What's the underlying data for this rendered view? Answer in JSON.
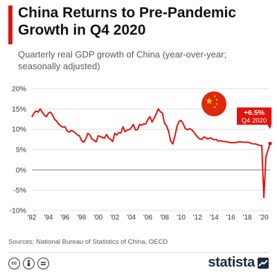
{
  "header": {
    "title": "China Returns to Pre-Pandemic Growth in Q4 2020",
    "subtitle": "Quarterly real GDP growth of China (year-over-year; seasonally adjusted)"
  },
  "footer": {
    "source": "Sources: National Bureau of Statistics of China, OECD",
    "brand": "statista",
    "license_icons": [
      "cc-icon",
      "person-icon",
      "equals-icon"
    ]
  },
  "colors": {
    "line": "#e3120b",
    "annotation_box": "#e3120b",
    "zero_line": "#8c8c8c",
    "grid": "#d9d9d9",
    "flag_red": "#de2910",
    "flag_yellow": "#ffde00"
  },
  "chart_data": {
    "type": "line",
    "title": "China Returns to Pre-Pandemic Growth in Q4 2020",
    "subtitle": "Quarterly real GDP growth of China (year-over-year; seasonally adjusted)",
    "xlabel": "",
    "ylabel": "",
    "xlim": [
      "1992-Q1",
      "2020-Q4"
    ],
    "ylim": [
      -10,
      20
    ],
    "y_ticks": [
      20,
      15,
      10,
      5,
      0,
      -5,
      -10
    ],
    "y_tick_labels": [
      "20%",
      "15%",
      "10%",
      "5%",
      "0%",
      "-5%",
      "-10%"
    ],
    "x_ticks": [
      1992,
      1994,
      1996,
      1998,
      2000,
      2002,
      2004,
      2006,
      2008,
      2010,
      2012,
      2014,
      2016,
      2018,
      2020
    ],
    "x_tick_labels": [
      "'92",
      "'94",
      "'96",
      "'98",
      "'00",
      "'02",
      "'04",
      "'06",
      "'08",
      "'10",
      "'12",
      "'14",
      "'16",
      "'18",
      "'20"
    ],
    "grid": "horizontal",
    "annotation": {
      "text_value": "+6.5%",
      "text_period": "Q4 2020",
      "x": "2020-Q4",
      "y": 6.5
    },
    "series": [
      {
        "values": [
          [
            "1992-Q1",
            13.0
          ],
          [
            "1992-Q2",
            14.0
          ],
          [
            "1992-Q3",
            14.5
          ],
          [
            "1992-Q4",
            14.2
          ],
          [
            "1993-Q1",
            15.0
          ],
          [
            "1993-Q2",
            14.2
          ],
          [
            "1993-Q3",
            13.5
          ],
          [
            "1993-Q4",
            13.1
          ],
          [
            "1994-Q1",
            14.0
          ],
          [
            "1994-Q2",
            14.2
          ],
          [
            "1994-Q3",
            13.5
          ],
          [
            "1994-Q4",
            12.4
          ],
          [
            "1995-Q1",
            12.0
          ],
          [
            "1995-Q2",
            11.2
          ],
          [
            "1995-Q3",
            10.8
          ],
          [
            "1995-Q4",
            10.5
          ],
          [
            "1996-Q1",
            10.6
          ],
          [
            "1996-Q2",
            9.6
          ],
          [
            "1996-Q3",
            9.3
          ],
          [
            "1996-Q4",
            9.7
          ],
          [
            "1997-Q1",
            9.5
          ],
          [
            "1997-Q2",
            9.1
          ],
          [
            "1997-Q3",
            8.6
          ],
          [
            "1997-Q4",
            8.4
          ],
          [
            "1998-Q1",
            7.2
          ],
          [
            "1998-Q2",
            6.8
          ],
          [
            "1998-Q3",
            7.6
          ],
          [
            "1998-Q4",
            9.0
          ],
          [
            "1999-Q1",
            8.6
          ],
          [
            "1999-Q2",
            7.6
          ],
          [
            "1999-Q3",
            7.3
          ],
          [
            "1999-Q4",
            6.9
          ],
          [
            "2000-Q1",
            8.4
          ],
          [
            "2000-Q2",
            8.2
          ],
          [
            "2000-Q3",
            8.0
          ],
          [
            "2000-Q4",
            7.8
          ],
          [
            "2001-Q1",
            8.7
          ],
          [
            "2001-Q2",
            7.9
          ],
          [
            "2001-Q3",
            7.5
          ],
          [
            "2001-Q4",
            7.0
          ],
          [
            "2002-Q1",
            9.0
          ],
          [
            "2002-Q2",
            8.6
          ],
          [
            "2002-Q3",
            9.2
          ],
          [
            "2002-Q4",
            9.1
          ],
          [
            "2003-Q1",
            10.6
          ],
          [
            "2003-Q2",
            9.4
          ],
          [
            "2003-Q3",
            9.8
          ],
          [
            "2003-Q4",
            9.9
          ],
          [
            "2004-Q1",
            10.4
          ],
          [
            "2004-Q2",
            11.2
          ],
          [
            "2004-Q3",
            9.8
          ],
          [
            "2004-Q4",
            9.9
          ],
          [
            "2005-Q1",
            11.2
          ],
          [
            "2005-Q2",
            11.0
          ],
          [
            "2005-Q3",
            11.3
          ],
          [
            "2005-Q4",
            11.3
          ],
          [
            "2006-Q1",
            12.4
          ],
          [
            "2006-Q2",
            13.1
          ],
          [
            "2006-Q3",
            11.8
          ],
          [
            "2006-Q4",
            12.7
          ],
          [
            "2007-Q1",
            13.8
          ],
          [
            "2007-Q2",
            15.0
          ],
          [
            "2007-Q3",
            14.3
          ],
          [
            "2007-Q4",
            14.0
          ],
          [
            "2008-Q1",
            11.5
          ],
          [
            "2008-Q2",
            10.9
          ],
          [
            "2008-Q3",
            9.5
          ],
          [
            "2008-Q4",
            7.1
          ],
          [
            "2009-Q1",
            6.4
          ],
          [
            "2009-Q2",
            8.2
          ],
          [
            "2009-Q3",
            10.6
          ],
          [
            "2009-Q4",
            11.9
          ],
          [
            "2010-Q1",
            12.2
          ],
          [
            "2010-Q2",
            11.4
          ],
          [
            "2010-Q3",
            10.2
          ],
          [
            "2010-Q4",
            9.9
          ],
          [
            "2011-Q1",
            10.1
          ],
          [
            "2011-Q2",
            10.0
          ],
          [
            "2011-Q3",
            9.4
          ],
          [
            "2011-Q4",
            8.7
          ],
          [
            "2012-Q1",
            8.1
          ],
          [
            "2012-Q2",
            7.6
          ],
          [
            "2012-Q3",
            7.5
          ],
          [
            "2012-Q4",
            8.1
          ],
          [
            "2013-Q1",
            7.9
          ],
          [
            "2013-Q2",
            7.6
          ],
          [
            "2013-Q3",
            7.9
          ],
          [
            "2013-Q4",
            7.7
          ],
          [
            "2014-Q1",
            7.4
          ],
          [
            "2014-Q2",
            7.5
          ],
          [
            "2014-Q3",
            7.1
          ],
          [
            "2014-Q4",
            7.2
          ],
          [
            "2015-Q1",
            7.0
          ],
          [
            "2015-Q2",
            7.0
          ],
          [
            "2015-Q3",
            6.9
          ],
          [
            "2015-Q4",
            6.8
          ],
          [
            "2016-Q1",
            6.7
          ],
          [
            "2016-Q2",
            6.7
          ],
          [
            "2016-Q3",
            6.7
          ],
          [
            "2016-Q4",
            6.8
          ],
          [
            "2017-Q1",
            6.9
          ],
          [
            "2017-Q2",
            6.9
          ],
          [
            "2017-Q3",
            6.8
          ],
          [
            "2017-Q4",
            6.8
          ],
          [
            "2018-Q1",
            6.8
          ],
          [
            "2018-Q2",
            6.7
          ],
          [
            "2018-Q3",
            6.5
          ],
          [
            "2018-Q4",
            6.4
          ],
          [
            "2019-Q1",
            6.4
          ],
          [
            "2019-Q2",
            6.2
          ],
          [
            "2019-Q3",
            6.0
          ],
          [
            "2019-Q4",
            6.0
          ],
          [
            "2020-Q1",
            -6.8
          ],
          [
            "2020-Q2",
            3.2
          ],
          [
            "2020-Q3",
            4.9
          ],
          [
            "2020-Q4",
            6.5
          ]
        ]
      }
    ]
  }
}
